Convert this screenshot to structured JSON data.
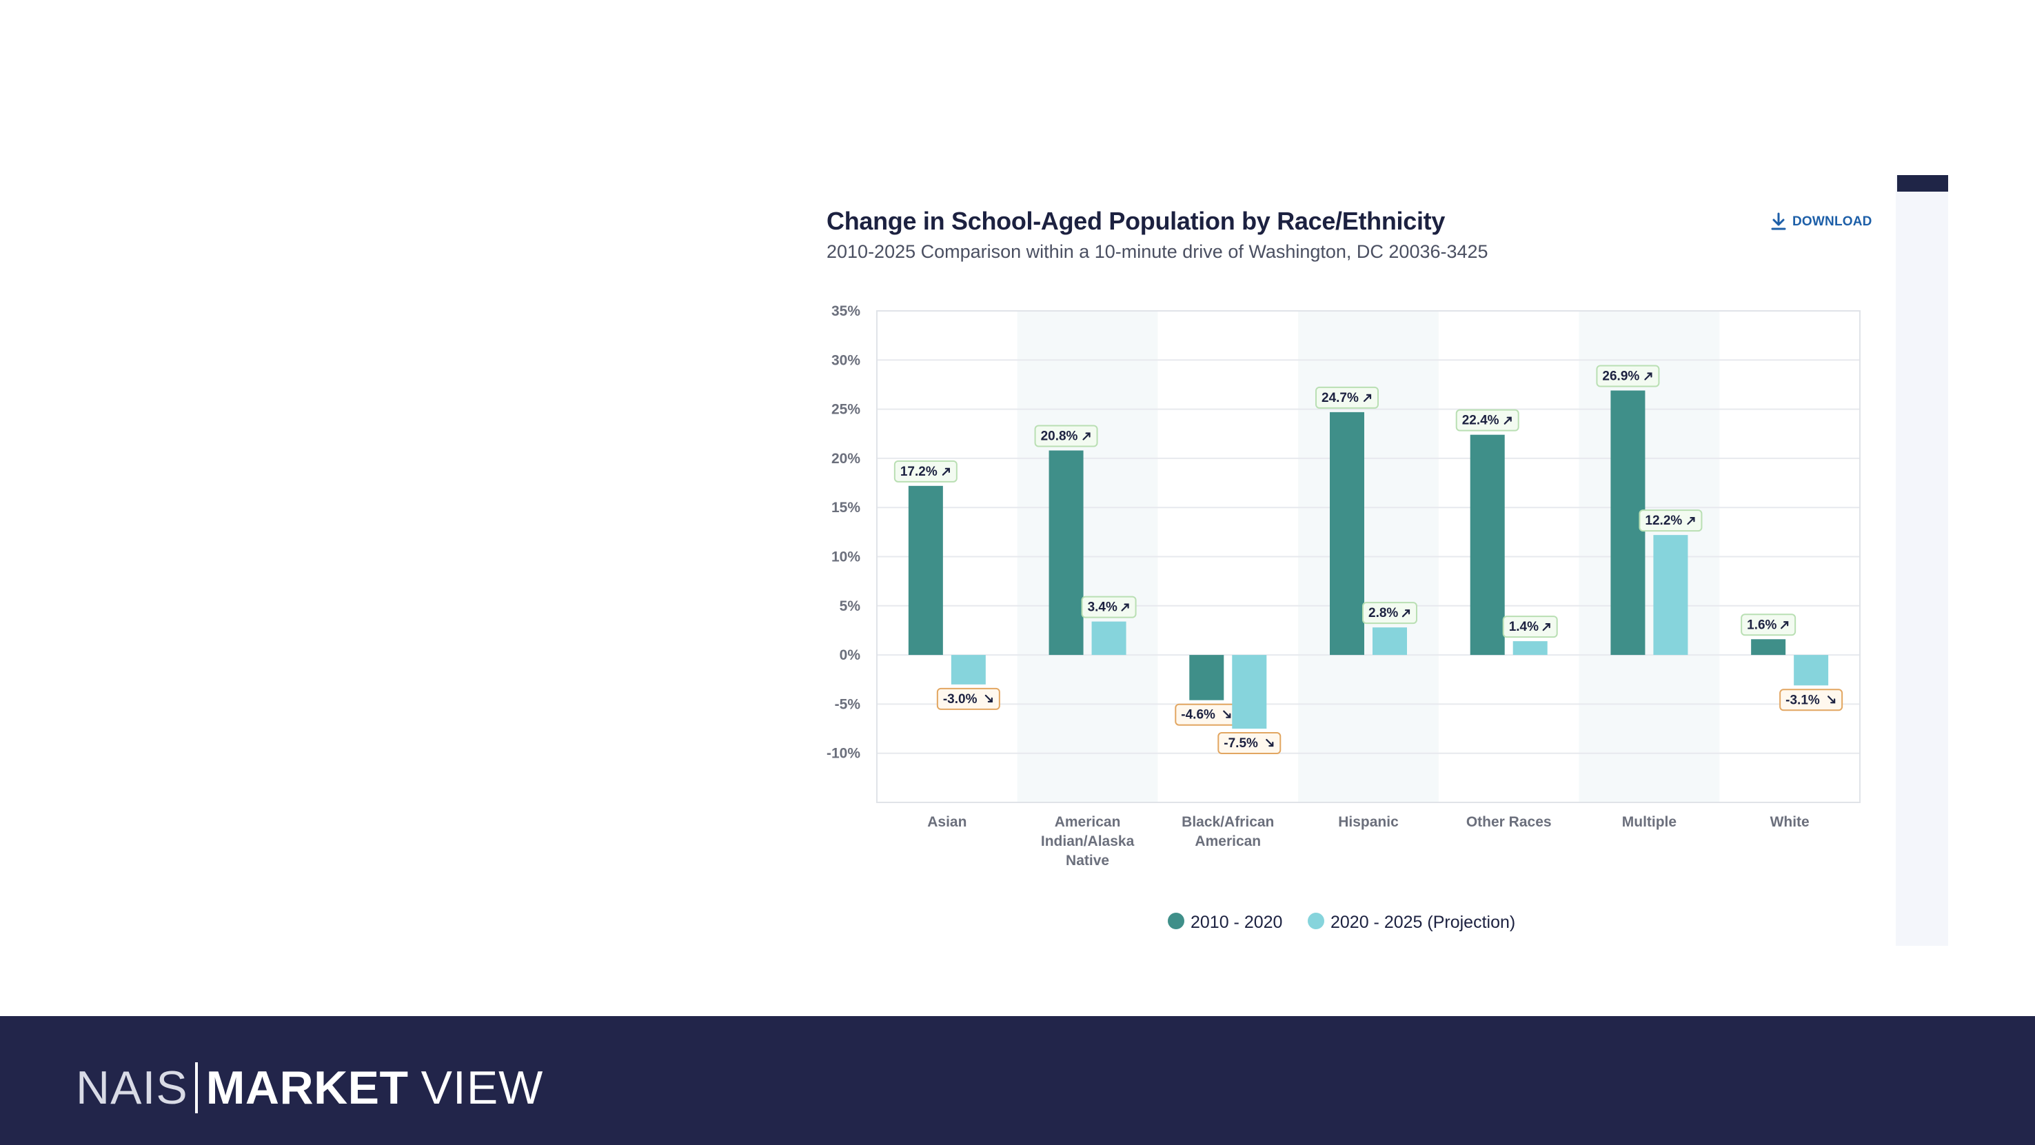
{
  "download": {
    "label": "DOWNLOAD",
    "icon": "download-icon"
  },
  "brand": {
    "nais": "NAIS",
    "market": "MARKET",
    "view": "VIEW"
  },
  "colors": {
    "series1": "#3f8f89",
    "series2": "#86d4dc",
    "positive_label_bg": "#f3fbf1",
    "positive_label_border": "#b9dfb3",
    "negative_label_bg": "#fff8ee",
    "negative_label_border": "#e2a661",
    "footer": "#22254a"
  },
  "chart_data": {
    "type": "bar",
    "title": "Change in School-Aged Population by Race/Ethnicity",
    "subtitle": "2010-2025 Comparison within a 10-minute drive of Washington, DC 20036-3425",
    "categories": [
      "Asian",
      "American Indian/Alaska Native",
      "Black/African American",
      "Hispanic",
      "Other Races",
      "Multiple",
      "White"
    ],
    "category_lines": [
      [
        "Asian"
      ],
      [
        "American",
        "Indian/Alaska",
        "Native"
      ],
      [
        "Black/African",
        "American"
      ],
      [
        "Hispanic"
      ],
      [
        "Other Races"
      ],
      [
        "Multiple"
      ],
      [
        "White"
      ]
    ],
    "series": [
      {
        "name": "2010 - 2020",
        "values": [
          17.2,
          20.8,
          -4.6,
          24.7,
          22.4,
          26.9,
          1.6
        ],
        "labels": [
          "17.2%",
          "20.8%",
          "-4.6%",
          "24.7%",
          "22.4%",
          "26.9%",
          "1.6%"
        ]
      },
      {
        "name": "2020 - 2025 (Projection)",
        "values": [
          -3.0,
          3.4,
          -7.5,
          2.8,
          1.4,
          12.2,
          -3.1
        ],
        "labels": [
          "-3.0%",
          "3.4%",
          "-7.5%",
          "2.8%",
          "1.4%",
          "12.2%",
          "-3.1%"
        ]
      }
    ],
    "yticks": [
      35,
      30,
      25,
      20,
      15,
      10,
      5,
      0,
      -5,
      -10
    ],
    "ytick_labels": [
      "35%",
      "30%",
      "25%",
      "20%",
      "15%",
      "10%",
      "5%",
      "0%",
      "-5%",
      "-10%"
    ],
    "ylim": [
      -15,
      35
    ],
    "grid": true,
    "shaded_categories": [
      1,
      3,
      5
    ],
    "legend_position": "bottom-center"
  }
}
